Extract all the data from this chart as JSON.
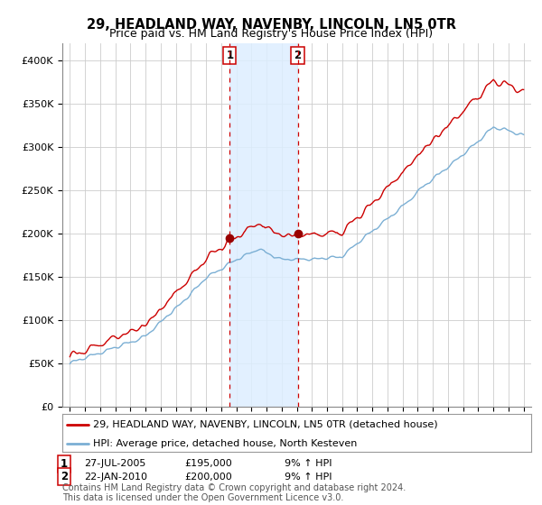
{
  "title": "29, HEADLAND WAY, NAVENBY, LINCOLN, LN5 0TR",
  "subtitle": "Price paid vs. HM Land Registry's House Price Index (HPI)",
  "ylim": [
    0,
    420000
  ],
  "yticks": [
    0,
    50000,
    100000,
    150000,
    200000,
    250000,
    300000,
    350000,
    400000
  ],
  "ytick_labels": [
    "£0",
    "£50K",
    "£100K",
    "£150K",
    "£200K",
    "£250K",
    "£300K",
    "£350K",
    "£400K"
  ],
  "sale1_date": 2005.57,
  "sale1_price": 195000,
  "sale1_label": "1",
  "sale2_date": 2010.06,
  "sale2_price": 200000,
  "sale2_label": "2",
  "line_color_red": "#cc0000",
  "line_color_blue": "#7bafd4",
  "shade_color": "#ddeeff",
  "marker_color": "#990000",
  "vline_color": "#cc0000",
  "background_color": "#ffffff",
  "grid_color": "#cccccc",
  "legend_entry1": "29, HEADLAND WAY, NAVENBY, LINCOLN, LN5 0TR (detached house)",
  "legend_entry2": "HPI: Average price, detached house, North Kesteven",
  "footer": "Contains HM Land Registry data © Crown copyright and database right 2024.\nThis data is licensed under the Open Government Licence v3.0.",
  "title_fontsize": 10.5,
  "subtitle_fontsize": 9,
  "tick_fontsize": 8,
  "legend_fontsize": 8,
  "footer_fontsize": 7
}
